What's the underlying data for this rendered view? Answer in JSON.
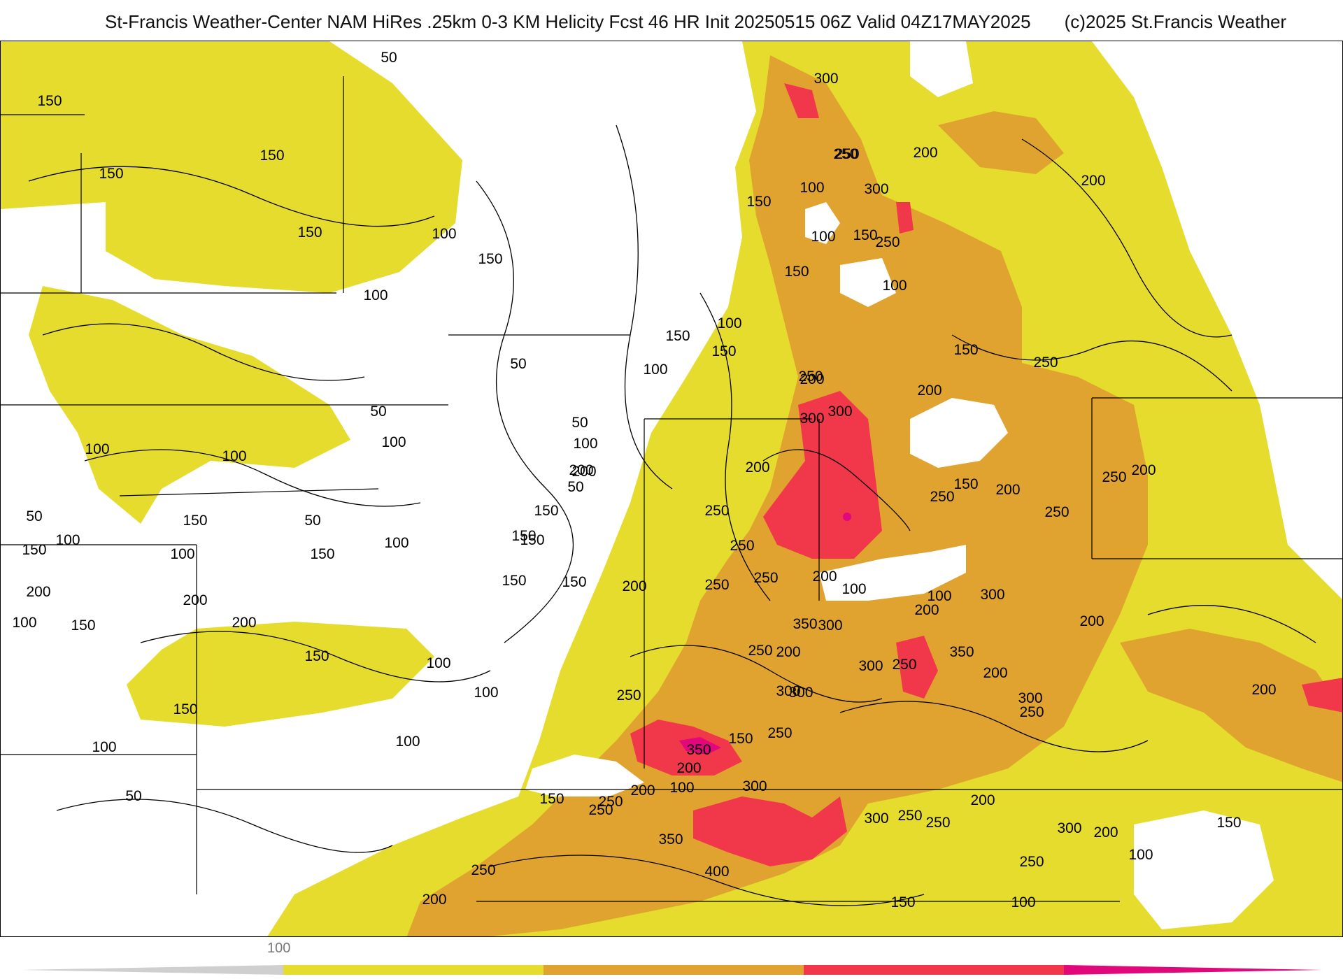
{
  "header": {
    "title": "St-Francis Weather-Center NAM HiRes .25km 0-3 KM Helicity Fcst 46 HR Init 20250515 06Z  Valid 04Z17MAY2025",
    "copyright": "(c)2025 St.Francis Weather"
  },
  "legend": {
    "tick_label": "100",
    "colors": [
      "#e5dc2e",
      "#e0a330",
      "#f0384a",
      "#e0087a"
    ]
  },
  "contour_labels": [
    "50",
    "150",
    "150",
    "150",
    "150",
    "100",
    "150",
    "100",
    "50",
    "50",
    "100",
    "50",
    "100",
    "150",
    "50",
    "100",
    "100",
    "50",
    "150",
    "200",
    "100",
    "100",
    "150",
    "150",
    "150",
    "100",
    "100",
    "50",
    "100",
    "100",
    "100",
    "150",
    "200",
    "200",
    "200",
    "150",
    "150",
    "200",
    "150",
    "150",
    "150",
    "50",
    "100",
    "100",
    "150",
    "100",
    "200",
    "300",
    "250",
    "200",
    "300",
    "250",
    "150",
    "100",
    "150",
    "100",
    "250",
    "100",
    "150",
    "200",
    "300",
    "250",
    "200",
    "250",
    "300",
    "200",
    "150",
    "250",
    "250",
    "200",
    "150",
    "250",
    "250",
    "150",
    "200",
    "250",
    "250",
    "200",
    "350",
    "300",
    "200",
    "100",
    "200",
    "100",
    "300",
    "250",
    "250",
    "300",
    "200",
    "200",
    "300",
    "350",
    "250",
    "200",
    "250",
    "300",
    "250",
    "300",
    "150",
    "250",
    "350",
    "200",
    "100",
    "200",
    "250",
    "300",
    "150",
    "250",
    "300",
    "350",
    "400",
    "250",
    "200",
    "250",
    "200",
    "150",
    "100",
    "250",
    "300",
    "200",
    "150",
    "200",
    "250",
    "100"
  ]
}
